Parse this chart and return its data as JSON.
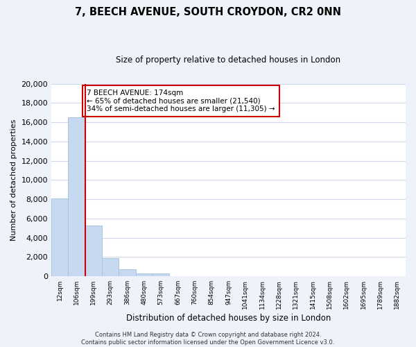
{
  "title": "7, BEECH AVENUE, SOUTH CROYDON, CR2 0NN",
  "subtitle": "Size of property relative to detached houses in London",
  "xlabel": "Distribution of detached houses by size in London",
  "ylabel": "Number of detached properties",
  "categories": [
    "12sqm",
    "106sqm",
    "199sqm",
    "293sqm",
    "386sqm",
    "480sqm",
    "573sqm",
    "667sqm",
    "760sqm",
    "854sqm",
    "947sqm",
    "1041sqm",
    "1134sqm",
    "1228sqm",
    "1321sqm",
    "1415sqm",
    "1508sqm",
    "1602sqm",
    "1695sqm",
    "1789sqm",
    "1882sqm"
  ],
  "values": [
    8100,
    16500,
    5300,
    1850,
    750,
    300,
    280,
    0,
    0,
    0,
    0,
    0,
    0,
    0,
    0,
    0,
    0,
    0,
    0,
    0,
    0
  ],
  "bar_color": "#c6d9f0",
  "bar_edge_color": "#a8c4e0",
  "vline_color": "#cc0000",
  "annotation_title": "7 BEECH AVENUE: 174sqm",
  "annotation_line1": "← 65% of detached houses are smaller (21,540)",
  "annotation_line2": "34% of semi-detached houses are larger (11,305) →",
  "ylim": [
    0,
    20000
  ],
  "yticks": [
    0,
    2000,
    4000,
    6000,
    8000,
    10000,
    12000,
    14000,
    16000,
    18000,
    20000
  ],
  "footer_line1": "Contains HM Land Registry data © Crown copyright and database right 2024.",
  "footer_line2": "Contains public sector information licensed under the Open Government Licence v3.0.",
  "background_color": "#eef2fa",
  "plot_bg_color": "#ffffff",
  "grid_color": "#d0d8ec"
}
